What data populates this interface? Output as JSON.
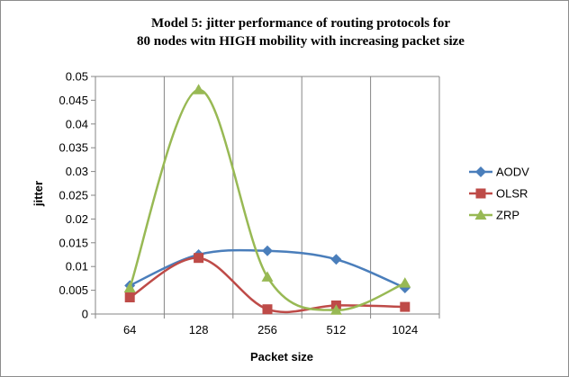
{
  "chart_data": {
    "type": "line",
    "title_lines": [
      "Model 5: jitter performance of routing protocols for",
      "80 nodes witn HIGH mobility with increasing packet size"
    ],
    "xlabel": "Packet size",
    "ylabel": "jitter",
    "categories": [
      "64",
      "128",
      "256",
      "512",
      "1024"
    ],
    "ylim": [
      0,
      0.05
    ],
    "yticks": [
      "0",
      "0.005",
      "0.01",
      "0.015",
      "0.02",
      "0.025",
      "0.03",
      "0.035",
      "0.04",
      "0.045",
      "0.05"
    ],
    "grid": "vertical",
    "smooth": true,
    "legend_position": "right",
    "series": [
      {
        "name": "AODV",
        "values": [
          0.006,
          0.0125,
          0.0133,
          0.0115,
          0.0055
        ],
        "color": "#4a7ebb",
        "marker": "diamond"
      },
      {
        "name": "OLSR",
        "values": [
          0.0035,
          0.0118,
          0.001,
          0.0018,
          0.0015
        ],
        "color": "#be4b48",
        "marker": "square"
      },
      {
        "name": "ZRP",
        "values": [
          0.0055,
          0.0472,
          0.0078,
          0.0008,
          0.0065
        ],
        "color": "#98b954",
        "marker": "triangle"
      }
    ]
  }
}
